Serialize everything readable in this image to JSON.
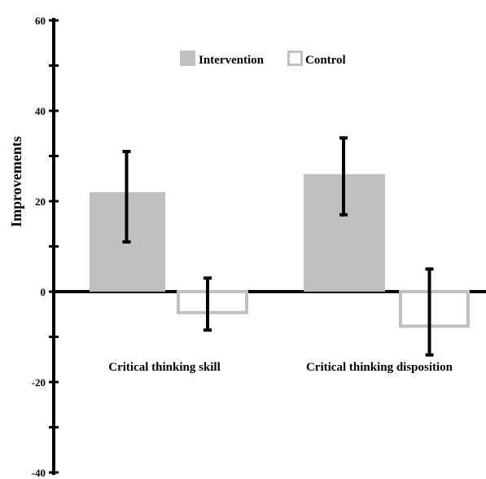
{
  "chart_data": {
    "type": "bar",
    "title": "",
    "xlabel": "",
    "ylabel": "Improvements",
    "ylim": [
      -40,
      60
    ],
    "y_ticks": [
      60,
      40,
      20,
      0,
      -20,
      -40
    ],
    "categories": [
      "Critical thinking skill",
      "Critical thinking disposition"
    ],
    "series": [
      {
        "name": "Intervention",
        "values": [
          22,
          26
        ],
        "error_low": [
          11,
          17
        ],
        "error_high": [
          31,
          34
        ],
        "fill": "#c0c0c0",
        "stroke": "#c0c0c0"
      },
      {
        "name": "Control",
        "values": [
          -5,
          -8
        ],
        "error_low": [
          -8.5,
          -14
        ],
        "error_high": [
          3,
          5
        ],
        "fill": "#ffffff",
        "stroke": "#c0c0c0"
      }
    ],
    "legend_position": "top",
    "grid": false
  }
}
